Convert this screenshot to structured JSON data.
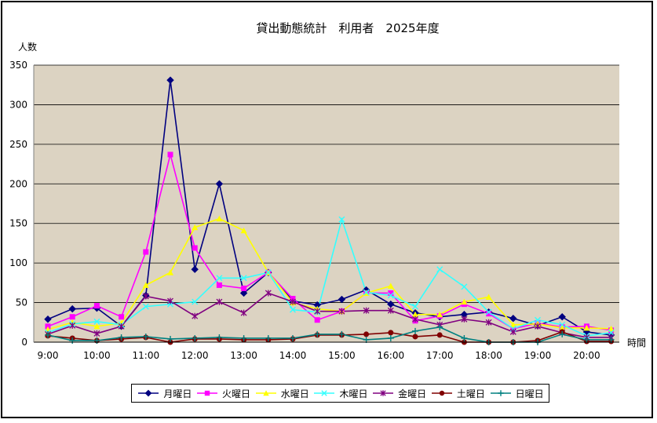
{
  "chart_data": {
    "type": "line",
    "title": "貸出動態統計　利用者　2025年度",
    "ylabel": "人数",
    "xlabel": "時間",
    "ylim": [
      0,
      350
    ],
    "yticks": [
      0,
      50,
      100,
      150,
      200,
      250,
      300,
      350
    ],
    "x": [
      "9:00",
      "9:30",
      "10:00",
      "10:30",
      "11:00",
      "11:30",
      "12:00",
      "12:30",
      "13:00",
      "13:30",
      "14:00",
      "14:30",
      "15:00",
      "15:30",
      "16:00",
      "16:30",
      "17:00",
      "17:30",
      "18:00",
      "18:30",
      "19:00",
      "19:30",
      "20:00",
      "20:30"
    ],
    "xtick_labels": [
      "9:00",
      "10:00",
      "11:00",
      "12:00",
      "13:00",
      "14:00",
      "15:00",
      "16:00",
      "17:00",
      "18:00",
      "19:00",
      "20:00"
    ],
    "grid": true,
    "legend_position": "bottom",
    "series": [
      {
        "name": "月曜日",
        "color": "#000080",
        "marker": "diamond",
        "values": [
          29,
          42,
          43,
          20,
          59,
          331,
          92,
          200,
          62,
          88,
          52,
          47,
          54,
          66,
          48,
          37,
          32,
          35,
          38,
          30,
          21,
          32,
          13,
          9
        ]
      },
      {
        "name": "火曜日",
        "color": "#ff00ff",
        "marker": "square",
        "values": [
          20,
          32,
          46,
          32,
          114,
          237,
          119,
          72,
          68,
          88,
          55,
          28,
          39,
          62,
          62,
          27,
          33,
          48,
          36,
          17,
          24,
          19,
          20,
          15
        ]
      },
      {
        "name": "水曜日",
        "color": "#ffff00",
        "marker": "triangle",
        "values": [
          16,
          25,
          20,
          24,
          72,
          88,
          145,
          156,
          141,
          88,
          50,
          42,
          39,
          62,
          71,
          35,
          35,
          51,
          57,
          22,
          23,
          18,
          18,
          17
        ]
      },
      {
        "name": "木曜日",
        "color": "#33ffff",
        "marker": "x",
        "values": [
          12,
          23,
          26,
          22,
          45,
          48,
          51,
          81,
          81,
          88,
          41,
          38,
          155,
          63,
          59,
          45,
          92,
          70,
          38,
          17,
          28,
          22,
          8,
          12
        ]
      },
      {
        "name": "金曜日",
        "color": "#800080",
        "marker": "star",
        "values": [
          10,
          21,
          11,
          20,
          58,
          52,
          33,
          51,
          37,
          62,
          51,
          39,
          39,
          40,
          40,
          29,
          22,
          29,
          25,
          13,
          20,
          12,
          6,
          6
        ]
      },
      {
        "name": "土曜日",
        "color": "#800000",
        "marker": "circle",
        "values": [
          8,
          5,
          2,
          4,
          6,
          0,
          4,
          4,
          3,
          3,
          4,
          9,
          9,
          10,
          12,
          7,
          9,
          0,
          0,
          0,
          2,
          13,
          1,
          1
        ]
      },
      {
        "name": "日曜日",
        "color": "#008080",
        "marker": "plus",
        "values": [
          9,
          2,
          2,
          6,
          7,
          4,
          5,
          6,
          5,
          5,
          5,
          10,
          10,
          3,
          5,
          14,
          19,
          5,
          0,
          0,
          0,
          10,
          3,
          3
        ]
      }
    ]
  }
}
